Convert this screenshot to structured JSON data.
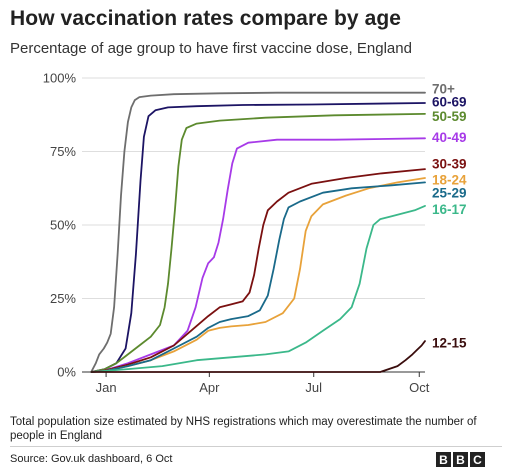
{
  "header": {
    "title": "How vaccination rates compare by age",
    "subtitle": "Percentage of age group to have first vaccine dose, England"
  },
  "footer": {
    "note": "Total population size estimated by NHS registrations which may overestimate the number of people in England",
    "source": "Source: Gov.uk dashboard, 6 Oct",
    "logo_letters": [
      "B",
      "B",
      "C"
    ]
  },
  "chart_data": {
    "type": "line",
    "title": "How vaccination rates compare by age",
    "subtitle": "Percentage of age group to have first vaccine dose, England",
    "xlabel": "",
    "ylabel": "",
    "x_ticks": [
      {
        "label": "Jan",
        "value": 1
      },
      {
        "label": "Apr",
        "value": 91
      },
      {
        "label": "Jul",
        "value": 182
      },
      {
        "label": "Oct",
        "value": 274
      }
    ],
    "xlim": [
      -20,
      279
    ],
    "ylim": [
      0,
      100
    ],
    "y_ticks": [
      {
        "label": "0%",
        "value": 0
      },
      {
        "label": "25%",
        "value": 25
      },
      {
        "label": "50%",
        "value": 50
      },
      {
        "label": "75%",
        "value": 75
      },
      {
        "label": "100%",
        "value": 100
      }
    ],
    "grid": true,
    "legend": "direct labels at line ends (right)",
    "series": [
      {
        "name": "70+",
        "color": "#6e6e6e",
        "label_y": 96.5,
        "points": [
          [
            -12,
            0
          ],
          [
            -8,
            3
          ],
          [
            -5,
            6
          ],
          [
            -1,
            8
          ],
          [
            2,
            10
          ],
          [
            5,
            13
          ],
          [
            8,
            22
          ],
          [
            11,
            40
          ],
          [
            14,
            60
          ],
          [
            17,
            75
          ],
          [
            20,
            85
          ],
          [
            23,
            90
          ],
          [
            26,
            92.5
          ],
          [
            30,
            93.5
          ],
          [
            40,
            94
          ],
          [
            60,
            94.5
          ],
          [
            100,
            94.8
          ],
          [
            150,
            95
          ],
          [
            200,
            95
          ],
          [
            279,
            95
          ]
        ]
      },
      {
        "name": "60-69",
        "color": "#1c1464",
        "label_y": 92.0,
        "points": [
          [
            -12,
            0
          ],
          [
            0,
            1
          ],
          [
            10,
            3
          ],
          [
            18,
            8
          ],
          [
            23,
            20
          ],
          [
            27,
            40
          ],
          [
            31,
            65
          ],
          [
            34,
            80
          ],
          [
            38,
            87
          ],
          [
            44,
            89
          ],
          [
            55,
            90
          ],
          [
            80,
            90.4
          ],
          [
            120,
            90.8
          ],
          [
            180,
            91
          ],
          [
            279,
            91.5
          ]
        ]
      },
      {
        "name": "50-59",
        "color": "#5c8a2e",
        "label_y": 87.0,
        "points": [
          [
            -12,
            0
          ],
          [
            0,
            1
          ],
          [
            10,
            3
          ],
          [
            20,
            6
          ],
          [
            30,
            9
          ],
          [
            40,
            12
          ],
          [
            48,
            16
          ],
          [
            52,
            22
          ],
          [
            55,
            30
          ],
          [
            58,
            42
          ],
          [
            61,
            55
          ],
          [
            64,
            70
          ],
          [
            67,
            79
          ],
          [
            71,
            83
          ],
          [
            80,
            84.5
          ],
          [
            100,
            85.5
          ],
          [
            140,
            86.5
          ],
          [
            200,
            87.3
          ],
          [
            279,
            87.8
          ]
        ]
      },
      {
        "name": "40-49",
        "color": "#a73ae8",
        "label_y": 80.0,
        "points": [
          [
            -12,
            0
          ],
          [
            0,
            0.5
          ],
          [
            20,
            3
          ],
          [
            40,
            6
          ],
          [
            60,
            9
          ],
          [
            72,
            14
          ],
          [
            79,
            22
          ],
          [
            85,
            32
          ],
          [
            90,
            37
          ],
          [
            95,
            39
          ],
          [
            99,
            44
          ],
          [
            103,
            52
          ],
          [
            107,
            62
          ],
          [
            111,
            71
          ],
          [
            115,
            76
          ],
          [
            125,
            78
          ],
          [
            150,
            79
          ],
          [
            200,
            79
          ],
          [
            279,
            79.5
          ]
        ]
      },
      {
        "name": "30-39",
        "color": "#7a1010",
        "label_y": 71.0,
        "points": [
          [
            -12,
            0
          ],
          [
            0,
            0.5
          ],
          [
            20,
            2.5
          ],
          [
            40,
            5
          ],
          [
            60,
            9
          ],
          [
            75,
            14
          ],
          [
            90,
            19
          ],
          [
            100,
            22
          ],
          [
            110,
            23
          ],
          [
            120,
            24
          ],
          [
            126,
            27
          ],
          [
            130,
            33
          ],
          [
            134,
            42
          ],
          [
            138,
            50
          ],
          [
            142,
            55
          ],
          [
            150,
            58
          ],
          [
            160,
            61
          ],
          [
            180,
            64
          ],
          [
            210,
            66
          ],
          [
            240,
            67.5
          ],
          [
            279,
            69
          ]
        ]
      },
      {
        "name": "18-24",
        "color": "#e8a23a",
        "label_y": 65.5,
        "points": [
          [
            -12,
            0
          ],
          [
            0,
            0.3
          ],
          [
            20,
            2
          ],
          [
            40,
            4
          ],
          [
            60,
            7
          ],
          [
            80,
            11
          ],
          [
            90,
            14
          ],
          [
            100,
            15
          ],
          [
            110,
            15.5
          ],
          [
            125,
            16
          ],
          [
            140,
            17
          ],
          [
            155,
            20
          ],
          [
            165,
            25
          ],
          [
            170,
            35
          ],
          [
            175,
            48
          ],
          [
            180,
            53
          ],
          [
            190,
            57
          ],
          [
            210,
            60
          ],
          [
            230,
            62.5
          ],
          [
            255,
            64.5
          ],
          [
            279,
            66
          ]
        ]
      },
      {
        "name": "25-29",
        "color": "#1a6a8a",
        "label_y": 61.0,
        "points": [
          [
            -12,
            0
          ],
          [
            0,
            0.3
          ],
          [
            20,
            2
          ],
          [
            40,
            4
          ],
          [
            60,
            8
          ],
          [
            80,
            12
          ],
          [
            90,
            15
          ],
          [
            100,
            17
          ],
          [
            110,
            18
          ],
          [
            125,
            19
          ],
          [
            135,
            21
          ],
          [
            142,
            26
          ],
          [
            147,
            35
          ],
          [
            152,
            45
          ],
          [
            156,
            52
          ],
          [
            160,
            56
          ],
          [
            170,
            58
          ],
          [
            190,
            61
          ],
          [
            215,
            62.5
          ],
          [
            250,
            63.5
          ],
          [
            279,
            64.5
          ]
        ]
      },
      {
        "name": "16-17",
        "color": "#3bb88a",
        "label_y": 55.5,
        "points": [
          [
            -12,
            0
          ],
          [
            20,
            1
          ],
          [
            50,
            2
          ],
          [
            80,
            4
          ],
          [
            110,
            5
          ],
          [
            140,
            6
          ],
          [
            160,
            7
          ],
          [
            175,
            10
          ],
          [
            190,
            14
          ],
          [
            205,
            18
          ],
          [
            215,
            22
          ],
          [
            222,
            30
          ],
          [
            228,
            42
          ],
          [
            234,
            50
          ],
          [
            240,
            52
          ],
          [
            250,
            53
          ],
          [
            260,
            54
          ],
          [
            270,
            55
          ],
          [
            279,
            56.5
          ]
        ]
      },
      {
        "name": "12-15",
        "color": "#3a0d0d",
        "label_y": 10.0,
        "points": [
          [
            -12,
            0
          ],
          [
            100,
            0
          ],
          [
            200,
            0
          ],
          [
            240,
            0
          ],
          [
            255,
            2
          ],
          [
            262,
            4
          ],
          [
            268,
            6
          ],
          [
            272,
            7.5
          ],
          [
            276,
            9
          ],
          [
            279,
            10.5
          ]
        ]
      }
    ]
  }
}
